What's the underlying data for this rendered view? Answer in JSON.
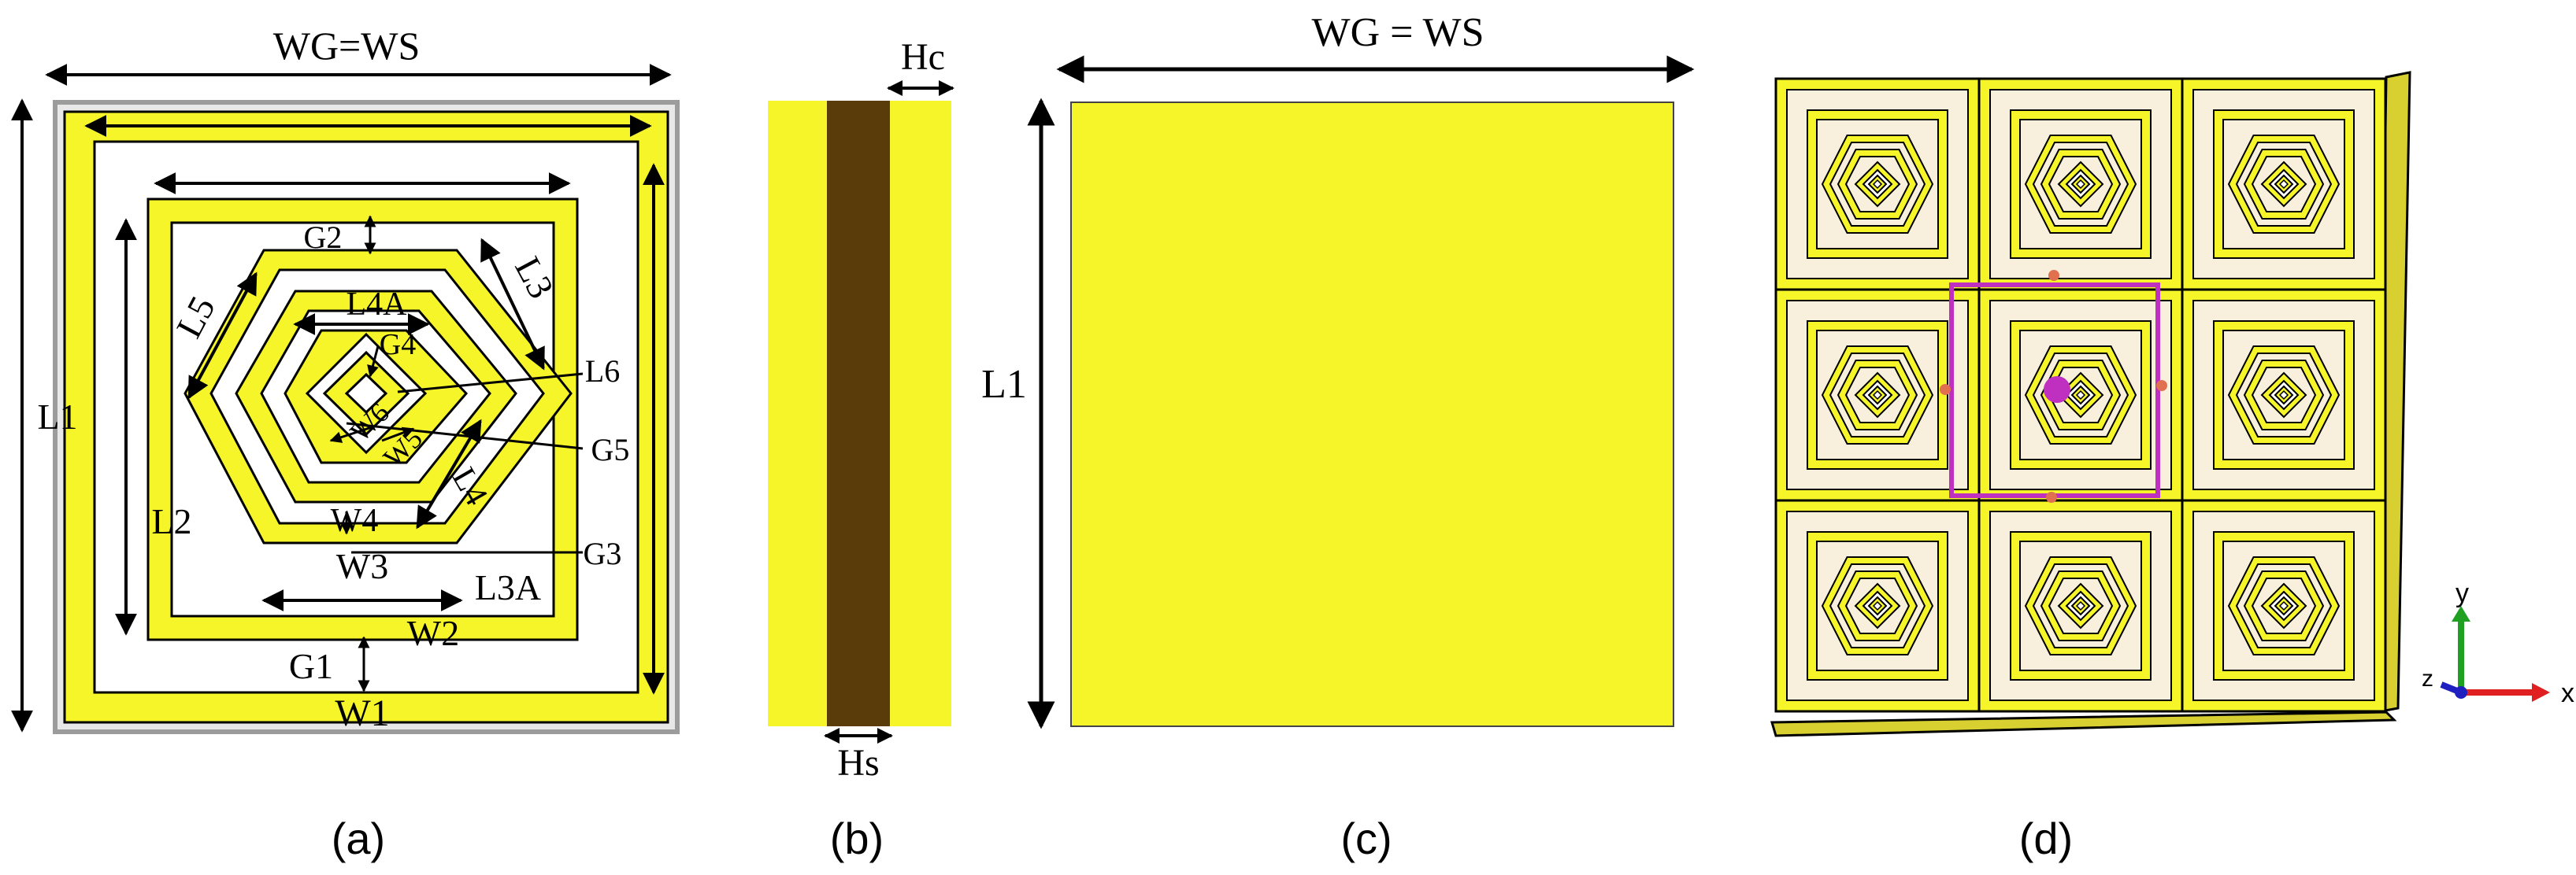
{
  "colors": {
    "copper": "#f5f52a",
    "substrate": "#5a3c0a",
    "outline": "#000000",
    "cell_fill": "#f8f0dc",
    "frame": "#9c9c9c",
    "port": "#c030c0",
    "axis_x": "#e02020",
    "axis_y": "#20a020",
    "axis_z": "#2020c0"
  },
  "panel_a": {
    "caption": "(a)",
    "dim_top": "WG=WS",
    "labels": {
      "L1": "L1",
      "L2": "L2",
      "L3": "L3",
      "L3A": "L3A",
      "L4": "L4",
      "L4A": "L4A",
      "L5": "L5",
      "L6": "L6",
      "W1": "W1",
      "W2": "W2",
      "W3": "W3",
      "W4": "W4",
      "W5": "W5",
      "W6": "W6",
      "G1": "G1",
      "G2": "G2",
      "G3": "G3",
      "G4": "G4",
      "G5": "G5"
    }
  },
  "panel_b": {
    "caption": "(b)",
    "hc": "Hc",
    "hs": "Hs"
  },
  "panel_c": {
    "caption": "(c)",
    "dim_top": "WG = WS",
    "dim_left": "L1"
  },
  "panel_d": {
    "caption": "(d)",
    "grid_rows": 3,
    "grid_cols": 3,
    "axes": {
      "x": "x",
      "y": "y",
      "z": "z"
    }
  }
}
